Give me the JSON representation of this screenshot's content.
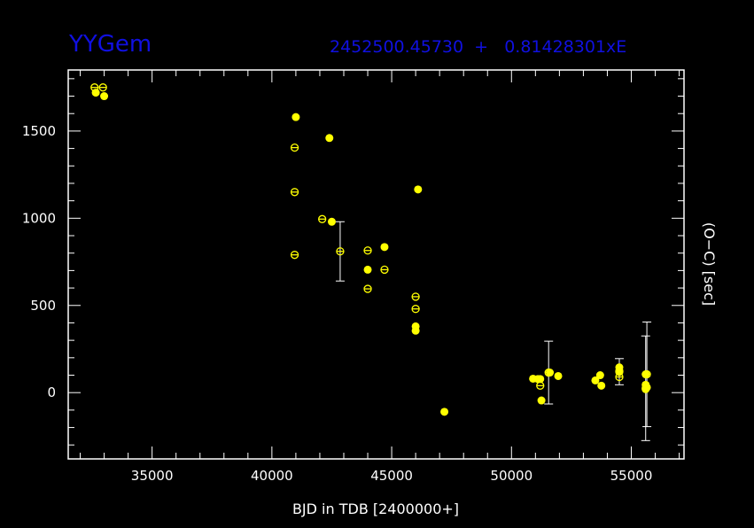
{
  "chart_data": {
    "type": "scatter",
    "title": "YYGem",
    "ephemeris": "2452500.45730  +   0.81428301xE",
    "xlabel": "BJD in TDB [2400000+]",
    "ylabel": "(O−C) [sec]",
    "xlim": [
      31500,
      57200
    ],
    "ylim": [
      -380,
      1850
    ],
    "x_ticks": [
      35000,
      40000,
      45000,
      50000,
      55000
    ],
    "y_ticks": [
      0,
      500,
      1000,
      1500
    ],
    "grid": false,
    "colors": {
      "background": "#000000",
      "axes": "#ffffff",
      "points": "#ffff00",
      "title": "#1010e0"
    },
    "series": [
      {
        "marker": "filled-circle",
        "points": [
          {
            "x": 32650,
            "y": 1720
          },
          {
            "x": 33000,
            "y": 1700
          },
          {
            "x": 41000,
            "y": 1580
          },
          {
            "x": 42400,
            "y": 1460
          },
          {
            "x": 42500,
            "y": 980
          },
          {
            "x": 44000,
            "y": 705
          },
          {
            "x": 44700,
            "y": 835
          },
          {
            "x": 46000,
            "y": 380
          },
          {
            "x": 46000,
            "y": 355
          },
          {
            "x": 46100,
            "y": 1165
          },
          {
            "x": 47200,
            "y": -110
          },
          {
            "x": 50900,
            "y": 80
          },
          {
            "x": 51100,
            "y": 78
          },
          {
            "x": 51200,
            "y": 78
          },
          {
            "x": 51250,
            "y": -45
          },
          {
            "x": 51600,
            "y": 115
          },
          {
            "x": 51950,
            "y": 95
          },
          {
            "x": 53500,
            "y": 70
          },
          {
            "x": 53700,
            "y": 100
          },
          {
            "x": 53750,
            "y": 40
          },
          {
            "x": 54500,
            "y": 145
          },
          {
            "x": 54500,
            "y": 125
          },
          {
            "x": 55600,
            "y": 105
          },
          {
            "x": 55600,
            "y": 45
          },
          {
            "x": 55600,
            "y": 20
          },
          {
            "x": 55650,
            "y": 30
          }
        ]
      },
      {
        "marker": "open-circle",
        "points": [
          {
            "x": 32600,
            "y": 1750
          },
          {
            "x": 32950,
            "y": 1750
          },
          {
            "x": 40950,
            "y": 1405
          },
          {
            "x": 40950,
            "y": 1150
          },
          {
            "x": 40950,
            "y": 790
          },
          {
            "x": 42100,
            "y": 995
          },
          {
            "x": 42850,
            "y": 810,
            "err": 170
          },
          {
            "x": 44000,
            "y": 815
          },
          {
            "x": 44000,
            "y": 595
          },
          {
            "x": 44700,
            "y": 705
          },
          {
            "x": 46000,
            "y": 550
          },
          {
            "x": 46000,
            "y": 480
          },
          {
            "x": 51200,
            "y": 40
          },
          {
            "x": 51550,
            "y": 115,
            "err": 180
          },
          {
            "x": 54500,
            "y": 90
          },
          {
            "x": 54500,
            "y": 120,
            "err": 75
          },
          {
            "x": 55600,
            "y": 25,
            "err": 300
          },
          {
            "x": 55650,
            "y": 105,
            "err": 300
          }
        ]
      }
    ]
  }
}
